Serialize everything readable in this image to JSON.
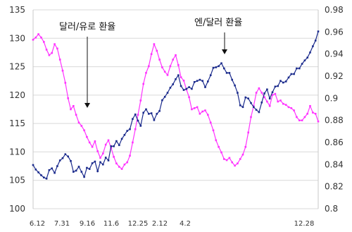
{
  "chart_data": {
    "type": "line",
    "x_ticks": [
      "6.12",
      "7.31",
      "9.16",
      "11.6",
      "12.25",
      "2.12",
      "4.2",
      "12.28"
    ],
    "y_left": {
      "range": [
        100,
        135
      ],
      "ticks": [
        "100",
        "105",
        "110",
        "115",
        "120",
        "125",
        "130",
        "135"
      ]
    },
    "y_right": {
      "range": [
        0.8,
        0.98
      ],
      "ticks": [
        "0.8",
        "0.82",
        "0.84",
        "0.86",
        "0.88",
        "0.9",
        "0.92",
        "0.94",
        "0.96",
        "0.98"
      ]
    },
    "grid": true,
    "annotations": [
      {
        "text": "달러/유로 환율"
      },
      {
        "text": "엔/달러 환율"
      }
    ],
    "series": [
      {
        "name": "달러/유로 환율",
        "axis": "right",
        "color": "#ff33ff",
        "values": [
          0.953,
          0.955,
          0.958,
          0.955,
          0.951,
          0.944,
          0.939,
          0.941,
          0.949,
          0.945,
          0.935,
          0.925,
          0.914,
          0.9,
          0.89,
          0.893,
          0.885,
          0.878,
          0.875,
          0.871,
          0.865,
          0.86,
          0.856,
          0.861,
          0.852,
          0.846,
          0.85,
          0.858,
          0.862,
          0.855,
          0.847,
          0.841,
          0.838,
          0.836,
          0.84,
          0.842,
          0.848,
          0.86,
          0.872,
          0.885,
          0.898,
          0.913,
          0.923,
          0.929,
          0.94,
          0.949,
          0.943,
          0.935,
          0.928,
          0.924,
          0.921,
          0.929,
          0.935,
          0.939,
          0.93,
          0.919,
          0.916,
          0.908,
          0.901,
          0.89,
          0.891,
          0.892,
          0.886,
          0.888,
          0.889,
          0.885,
          0.878,
          0.871,
          0.862,
          0.856,
          0.851,
          0.845,
          0.844,
          0.846,
          0.842,
          0.839,
          0.841,
          0.845,
          0.849,
          0.856,
          0.869,
          0.883,
          0.893,
          0.905,
          0.909,
          0.905,
          0.901,
          0.897,
          0.893,
          0.903,
          0.904,
          0.897,
          0.898,
          0.895,
          0.894,
          0.892,
          0.891,
          0.889,
          0.883,
          0.88,
          0.88,
          0.883,
          0.886,
          0.893,
          0.887,
          0.886,
          0.879
        ]
      },
      {
        "name": "엔/달러 환율",
        "axis": "left",
        "color": "#1a2a8c",
        "values": [
          107.7,
          106.9,
          106.4,
          105.9,
          105.5,
          105.3,
          106.8,
          107.1,
          106.3,
          107.5,
          108.5,
          108.9,
          109.6,
          109.2,
          108.4,
          106.5,
          106.7,
          107.4,
          106.5,
          105.6,
          107.2,
          107.0,
          108.0,
          108.3,
          106.6,
          108.2,
          107.8,
          109.0,
          108.5,
          111.0,
          111.0,
          111.9,
          111.2,
          112.3,
          113.0,
          113.7,
          114.0,
          115.8,
          116.6,
          115.5,
          114.6,
          116.9,
          117.5,
          116.7,
          116.8,
          115.6,
          116.7,
          117.2,
          119.1,
          119.7,
          120.4,
          121.3,
          121.9,
          122.8,
          123.5,
          121.6,
          120.9,
          121.1,
          121.4,
          121.1,
          122.3,
          122.5,
          122.7,
          122.5,
          121.4,
          122.4,
          123.5,
          124.8,
          124.9,
          125.1,
          125.6,
          124.7,
          123.9,
          123.9,
          122.7,
          121.7,
          120.4,
          118.2,
          117.9,
          119.6,
          119.4,
          118.6,
          117.9,
          117.4,
          117.0,
          118.7,
          120.3,
          121.0,
          119.4,
          120.5,
          121.5,
          121.6,
          122.5,
          122.2,
          122.4,
          123.1,
          123.7,
          123.7,
          124.7,
          124.7,
          125.5,
          126.1,
          126.6,
          127.5,
          128.6,
          129.6,
          131.2
        ]
      }
    ]
  }
}
